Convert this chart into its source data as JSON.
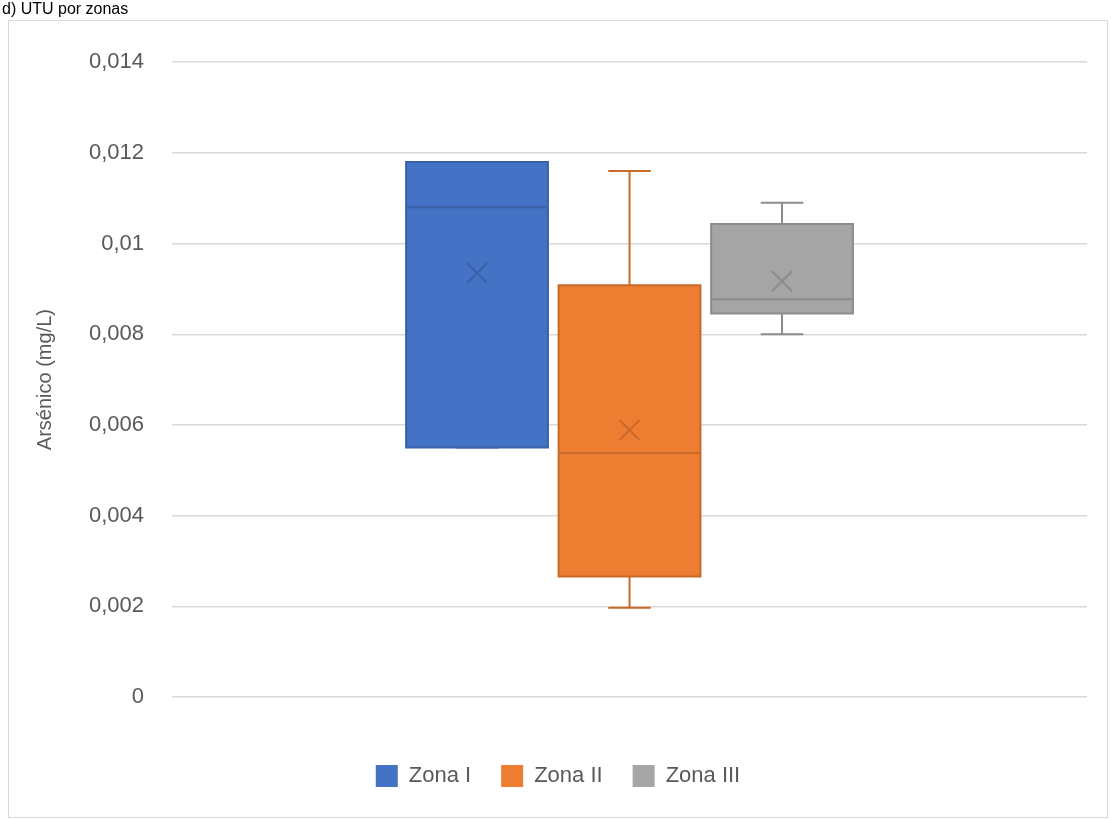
{
  "chart_data": {
    "type": "box",
    "title": "d) UTU por zonas",
    "ylabel": "Arsénico (mg/L)",
    "categories": [
      null
    ],
    "series": [
      {
        "name": "Zona I",
        "color": "#4472c4",
        "boxes": [
          {
            "low": 0.0055,
            "q1": 0.0055,
            "median": 0.0108,
            "q3": 0.0118,
            "high": 0.0118,
            "mean": 0.00935
          }
        ]
      },
      {
        "name": "Zona II",
        "color": "#ed7d31",
        "boxes": [
          {
            "low": 0.00197,
            "q1": 0.00266,
            "median": 0.00538,
            "q3": 0.00908,
            "high": 0.0116,
            "mean": 0.00589
          }
        ]
      },
      {
        "name": "Zona III",
        "color": "#a5a5a5",
        "boxes": [
          {
            "low": 0.008,
            "q1": 0.00846,
            "median": 0.00877,
            "q3": 0.01043,
            "high": 0.0109,
            "mean": 0.00917
          }
        ]
      }
    ],
    "ylim": [
      0,
      0.014
    ],
    "yticks": [
      0,
      {
        "value": 0.002,
        "label": "0,002"
      },
      {
        "value": 0.004,
        "label": "0,004"
      },
      {
        "value": 0.006,
        "label": "0,006"
      },
      {
        "value": 0.008,
        "label": "0,008"
      },
      {
        "value": 0.01,
        "label": "0,01"
      },
      {
        "value": 0.012,
        "label": "0,012"
      },
      {
        "value": 0.014,
        "label": "0,014"
      }
    ],
    "grid": "y",
    "legend": "bottom"
  }
}
